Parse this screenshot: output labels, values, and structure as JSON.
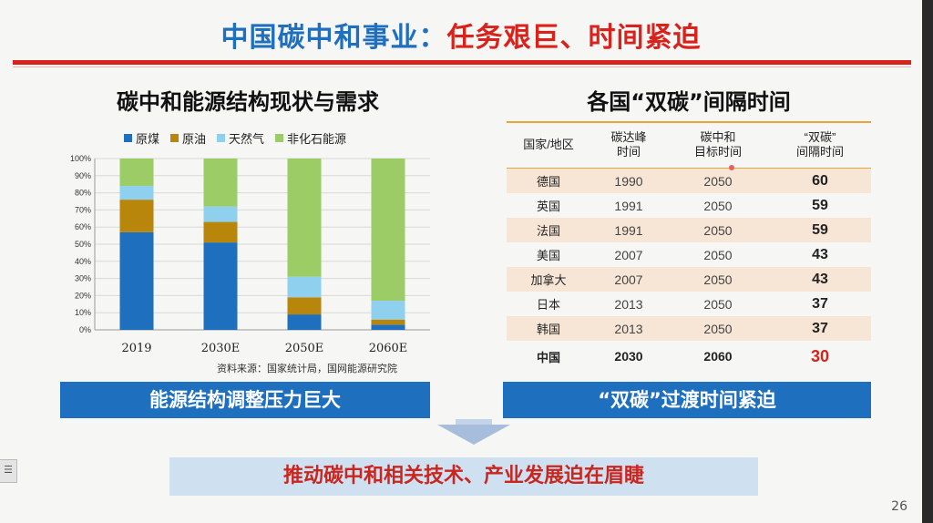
{
  "title": {
    "part1": "中国碳中和事业：",
    "part2": "任务艰巨、时间紧迫"
  },
  "left": {
    "title": "碳中和能源结构现状与需求",
    "source": "资料来源：国家统计局，国网能源研究院",
    "banner": "能源结构调整压力巨大"
  },
  "right": {
    "title": "各国“双碳”间隔时间",
    "banner": "“双碳”过渡时间紧迫",
    "headers": [
      "国家/地区",
      "碳达峰\n时间",
      "碳中和\n目标时间",
      "“双碳”\n间隔时间"
    ],
    "rows": [
      [
        "德国",
        "1990",
        "2050",
        "60"
      ],
      [
        "英国",
        "1991",
        "2050",
        "59"
      ],
      [
        "法国",
        "1991",
        "2050",
        "59"
      ],
      [
        "美国",
        "2007",
        "2050",
        "43"
      ],
      [
        "加拿大",
        "2007",
        "2050",
        "43"
      ],
      [
        "日本",
        "2013",
        "2050",
        "37"
      ],
      [
        "韩国",
        "2013",
        "2050",
        "37"
      ],
      [
        "中国",
        "2030",
        "2060",
        "30"
      ]
    ]
  },
  "bottom": {
    "text": "推动碳中和相关技术、产业发展迫在眉睫"
  },
  "page_number": "26",
  "colors": {
    "blue": "#1f6fbf",
    "red": "#d8221b",
    "coal": "#1f6fbf",
    "oil": "#b8860b",
    "gas": "#8fd0ef",
    "nonfossil": "#9ccc65"
  },
  "chart_data": {
    "type": "bar",
    "stacked": true,
    "categories": [
      "2019",
      "2030E",
      "2050E",
      "2060E"
    ],
    "series": [
      {
        "name": "原煤",
        "color": "#1f6fbf",
        "values": [
          57,
          51,
          9,
          3
        ]
      },
      {
        "name": "原油",
        "color": "#b8860b",
        "values": [
          19,
          12,
          10,
          3
        ]
      },
      {
        "name": "天然气",
        "color": "#8fd0ef",
        "values": [
          8,
          9,
          12,
          11
        ]
      },
      {
        "name": "非化石能源",
        "color": "#9ccc65",
        "values": [
          16,
          28,
          69,
          83
        ]
      }
    ],
    "yticks": [
      "0%",
      "10%",
      "20%",
      "30%",
      "40%",
      "50%",
      "60%",
      "70%",
      "80%",
      "90%",
      "100%"
    ],
    "ylim": [
      0,
      100
    ],
    "grid": true,
    "legend": "top"
  }
}
